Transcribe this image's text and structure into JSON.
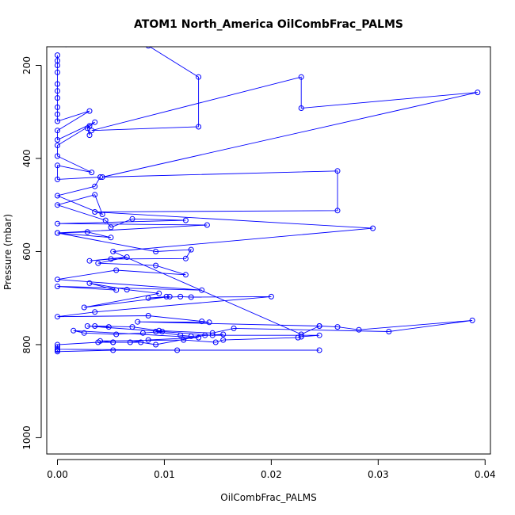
{
  "chart_data": {
    "type": "line",
    "title": "ATOM1 North_America OilCombFrac_PALMS",
    "xlabel": "OilCombFrac_PALMS",
    "ylabel": "Pressure (mbar)",
    "xlim": [
      -0.001,
      0.0405
    ],
    "ylim": [
      1035,
      160
    ],
    "y_reversed": true,
    "x_ticks": [
      0.0,
      0.01,
      0.02,
      0.03,
      0.04
    ],
    "x_tick_labels": [
      "0.00",
      "0.01",
      "0.02",
      "0.03",
      "0.04"
    ],
    "y_ticks": [
      200,
      400,
      600,
      800,
      1000
    ],
    "y_tick_labels": [
      "200",
      "400",
      "600",
      "800",
      "1000"
    ],
    "grid": false,
    "legend": "none",
    "series": [
      {
        "color": "#0000ff",
        "marker": "open-circle",
        "x": [
          0,
          0,
          0,
          0,
          0,
          0,
          0,
          0,
          0,
          0,
          0.003,
          0,
          0,
          0.0035,
          0.0028,
          0.003,
          0.003,
          0,
          0,
          0.0032,
          0,
          0,
          0.004,
          0.0035,
          0,
          0.0042,
          0.0035,
          0,
          0.0045,
          0.005,
          0.007,
          0.012,
          0,
          0.014,
          0,
          0.0028,
          0.005,
          0,
          0.0092,
          0.0125,
          0.012,
          0.005,
          0.003,
          0.0065,
          0.0038,
          0.0092,
          0.012,
          0.0055,
          0,
          0.0135,
          0,
          0.0055,
          0.003,
          0.0065,
          0.0095,
          0.0025,
          0.0105,
          0.0102,
          0.0085,
          0.0115,
          0.0125,
          0.02,
          0.0035,
          0,
          0.0085,
          0.0135,
          0.0142,
          0.0075,
          0.0245,
          0.0262,
          0.0282,
          0.0388,
          0.031,
          0.0165,
          0.0145,
          0.0095,
          0.007,
          0.0035,
          0.0048,
          0.0028,
          0.0145,
          0.0155,
          0.0125,
          0.0115,
          0.0092,
          0.0098,
          0.008,
          0.0055,
          0.0025,
          0.0015,
          0.0132,
          0.0085,
          0.0068,
          0.0052,
          0.004,
          0.0118,
          0.0148,
          0.0155,
          0.0225,
          0.0228,
          0.0245,
          0.0138,
          0.0092,
          0.0078,
          0.0052,
          0.0038,
          0,
          0,
          0,
          0.0112,
          0.0245,
          0.0052,
          0,
          0
        ],
        "y": [
          178,
          190,
          200,
          215,
          240,
          255,
          270,
          290,
          305,
          320,
          298,
          340,
          360,
          322,
          335,
          350,
          330,
          372,
          395,
          430,
          415,
          445,
          440,
          460,
          480,
          520,
          478,
          500,
          533,
          548,
          530,
          533,
          540,
          543,
          560,
          558,
          570,
          560,
          600,
          596,
          615,
          616,
          620,
          612,
          625,
          630,
          650,
          640,
          660,
          683,
          675,
          683,
          668,
          682,
          690,
          720,
          697,
          697,
          700,
          697,
          698,
          697,
          730,
          740,
          738,
          750,
          752,
          751,
          760,
          762,
          768,
          748,
          772,
          765,
          775,
          770,
          762,
          760,
          762,
          760,
          780,
          778,
          782,
          780,
          772,
          772,
          775,
          778,
          775,
          770,
          785,
          790,
          795,
          795,
          792,
          790,
          795,
          790,
          785,
          783,
          780,
          780,
          800,
          795,
          795,
          795,
          800,
          805,
          810,
          812,
          812,
          812,
          815,
          812
        ]
      },
      {
        "color": "#0000ff",
        "marker": "open-circle",
        "x": [
          0.0008,
          0.0085,
          0.0132,
          0.0132,
          0.0032,
          0.0228,
          0.0228,
          0.0393,
          0.0042,
          0.0262,
          0.0262,
          0.0035,
          0.0295,
          0.0052,
          0.0228,
          0.0245
        ],
        "y": [
          155,
          158,
          225,
          332,
          340,
          225,
          292,
          258,
          440,
          427,
          512,
          515,
          550,
          600,
          778,
          760
        ]
      }
    ]
  }
}
